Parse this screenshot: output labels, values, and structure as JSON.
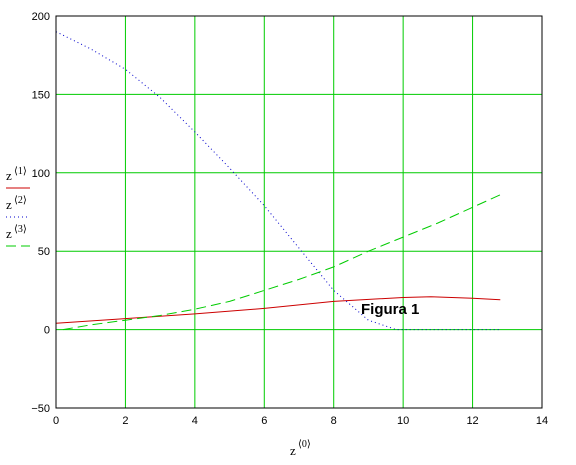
{
  "chart_data": {
    "type": "line",
    "xlim": [
      0,
      14
    ],
    "ylim": [
      -50,
      200
    ],
    "x_ticks": [
      0,
      2,
      4,
      6,
      8,
      10,
      12,
      14
    ],
    "y_ticks": [
      -50,
      0,
      50,
      100,
      150,
      200
    ],
    "grid": true,
    "grid_color": "#00cc00",
    "xlabel": {
      "base": "z",
      "sup": "⟨0⟩"
    },
    "legend_placement": "left",
    "annotation": "Figura 1",
    "series": [
      {
        "name": "z⟨1⟩",
        "label_base": "z",
        "label_sup": "⟨1⟩",
        "color": "#cc0000",
        "style": "solid",
        "x": [
          0,
          2,
          4,
          6,
          8,
          10,
          10.8,
          12,
          12.8
        ],
        "y": [
          4,
          7,
          10,
          13.5,
          18,
          20.5,
          21,
          20,
          19
        ]
      },
      {
        "name": "z⟨2⟩",
        "label_base": "z",
        "label_sup": "⟨2⟩",
        "color": "#0000cc",
        "style": "dotted",
        "x": [
          0,
          1,
          2,
          3,
          4,
          5,
          6,
          7,
          8,
          9,
          9.8,
          11,
          12.8
        ],
        "y": [
          190,
          179,
          166,
          148,
          126,
          103,
          79,
          52,
          25,
          6,
          0,
          0,
          0
        ]
      },
      {
        "name": "z⟨3⟩",
        "label_base": "z",
        "label_sup": "⟨3⟩",
        "color": "#00cc00",
        "style": "dashed",
        "x": [
          0.2,
          1,
          2,
          3,
          4,
          5,
          6,
          7,
          8,
          9,
          10,
          11,
          12,
          12.8
        ],
        "y": [
          0,
          3,
          6,
          9,
          13,
          18,
          25,
          32,
          40,
          50,
          59,
          68,
          78,
          86
        ]
      }
    ]
  }
}
